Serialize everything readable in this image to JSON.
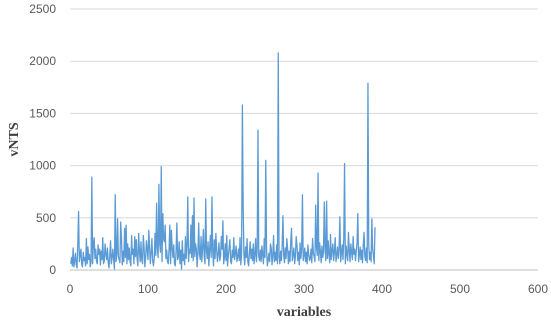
{
  "chart_data": {
    "type": "line",
    "title": "",
    "xlabel": "variables",
    "ylabel": "vNTS",
    "xlim": [
      0,
      600
    ],
    "ylim": [
      0,
      2500
    ],
    "x_ticks": [
      0,
      100,
      200,
      300,
      400,
      500,
      600
    ],
    "y_ticks": [
      0,
      500,
      1000,
      1500,
      2000,
      2500
    ],
    "x_tick_labels": [
      "0",
      "100",
      "200",
      "300",
      "400",
      "500",
      "600"
    ],
    "y_tick_labels": [
      "0",
      "500",
      "1000",
      "1500",
      "2000",
      "2500"
    ],
    "grid": "horizontal",
    "legend": "none",
    "series": [
      {
        "color": "#5b9bd5",
        "x_start": 1,
        "x_step": 1,
        "values": [
          60,
          120,
          40,
          210,
          30,
          90,
          160,
          50,
          20,
          250,
          560,
          80,
          140,
          200,
          60,
          30,
          170,
          90,
          120,
          40,
          300,
          60,
          220,
          100,
          150,
          30,
          80,
          890,
          60,
          250,
          310,
          110,
          200,
          80,
          60,
          240,
          150,
          200,
          50,
          180,
          100,
          310,
          60,
          90,
          250,
          150,
          100,
          210,
          70,
          20,
          140,
          280,
          60,
          120,
          200,
          90,
          10,
          720,
          80,
          150,
          490,
          130,
          100,
          70,
          460,
          310,
          50,
          180,
          80,
          400,
          120,
          430,
          60,
          250,
          100,
          210,
          80,
          40,
          330,
          150,
          200,
          60,
          320,
          130,
          290,
          110,
          40,
          350,
          180,
          80,
          270,
          100,
          60,
          330,
          210,
          30,
          120,
          280,
          190,
          100,
          380,
          220,
          60,
          160,
          300,
          90,
          40,
          110,
          350,
          140,
          640,
          210,
          120,
          820,
          250,
          170,
          990,
          80,
          540,
          300,
          270,
          430,
          110,
          190,
          80,
          60,
          200,
          430,
          60,
          380,
          210,
          120,
          240,
          60,
          40,
          180,
          450,
          100,
          130,
          270,
          60,
          190,
          10,
          280,
          90,
          150,
          50,
          320,
          110,
          240,
          700,
          80,
          200,
          160,
          430,
          120,
          520,
          90,
          690,
          130,
          250,
          200,
          30,
          170,
          450,
          150,
          100,
          320,
          80,
          210,
          390,
          140,
          60,
          680,
          180,
          110,
          270,
          40,
          200,
          330,
          120,
          700,
          180,
          40,
          290,
          110,
          350,
          200,
          80,
          150,
          260,
          90,
          130,
          320,
          200,
          470,
          60,
          120,
          250,
          90,
          330,
          40,
          140,
          210,
          290,
          80,
          60,
          190,
          120,
          310,
          100,
          160,
          230,
          80,
          130,
          200,
          90,
          310,
          50,
          160,
          1580,
          600,
          140,
          50,
          220,
          120,
          300,
          80,
          40,
          160,
          270,
          110,
          200,
          90,
          250,
          60,
          150,
          300,
          80,
          200,
          1340,
          130,
          90,
          190,
          80,
          230,
          150,
          60,
          300,
          120,
          1050,
          200,
          40,
          90,
          160,
          80,
          250,
          210,
          50,
          140,
          330,
          80,
          170,
          90,
          240,
          60,
          2080,
          130,
          60,
          180,
          90,
          230,
          520,
          140,
          70,
          210,
          110,
          300,
          200,
          60,
          180,
          80,
          270,
          400,
          90,
          150,
          210,
          60,
          130,
          320,
          230,
          90,
          170,
          50,
          260,
          110,
          200,
          720,
          90,
          140,
          210,
          80,
          170,
          60,
          240,
          150,
          90,
          110,
          200,
          70,
          300,
          160,
          130,
          80,
          620,
          220,
          140,
          930,
          90,
          260,
          180,
          70,
          230,
          120,
          170,
          650,
          210,
          90,
          660,
          110,
          280,
          150,
          70,
          340,
          100,
          190,
          250,
          90,
          170,
          310,
          80,
          140,
          220,
          110,
          200,
          510,
          80,
          160,
          240,
          100,
          300,
          1020,
          60,
          230,
          150,
          90,
          360,
          190,
          80,
          250,
          170,
          100,
          320,
          150,
          200,
          90,
          180,
          260,
          540,
          80,
          140,
          220,
          100,
          190,
          70,
          240,
          360,
          130,
          90,
          210,
          70,
          1790,
          250,
          100,
          170,
          80,
          490,
          200,
          140,
          60,
          410
        ]
      }
    ]
  }
}
